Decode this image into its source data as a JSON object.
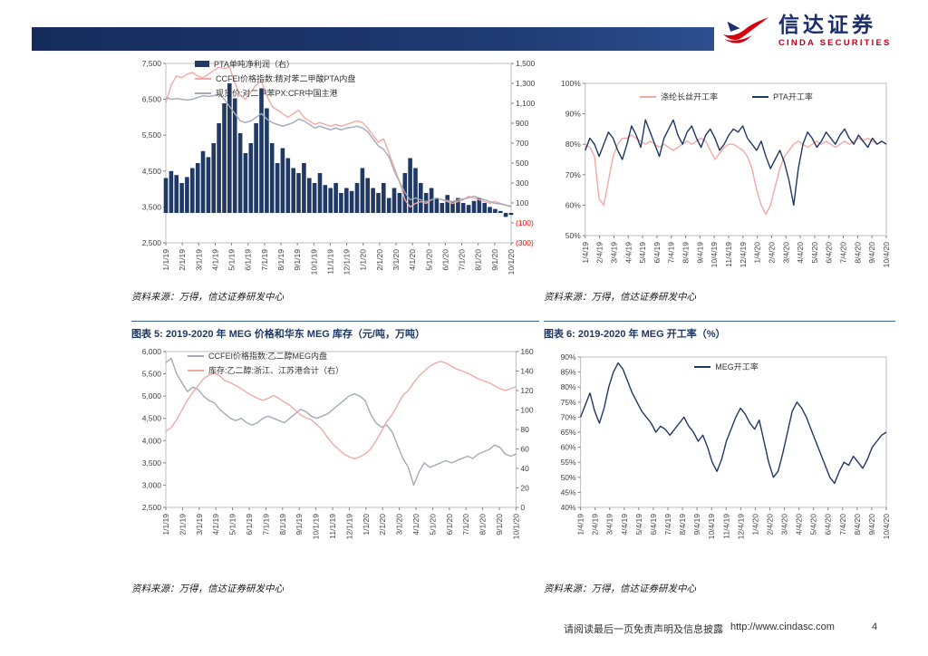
{
  "brand": {
    "name_cn": "信达证券",
    "name_en": "CINDA SECURITIES",
    "colors": {
      "navy": "#1B2F6E",
      "red": "#D7000F",
      "header_bar": "#1F3B73"
    }
  },
  "sections": {
    "source_note": "资料来源：万得，信达证券研发中心"
  },
  "page": {
    "footer_disclaimer": "请阅读最后一页免责声明及信息披露",
    "footer_url": "http://www.cindasc.com",
    "page_number": "4"
  },
  "chart_data": [
    {
      "id": "pta-profit-and-prices",
      "type": "mixed",
      "title": null,
      "x_labels": [
        "1/1/19",
        "2/1/19",
        "3/1/19",
        "4/1/19",
        "5/1/19",
        "6/1/19",
        "7/1/19",
        "8/1/19",
        "9/1/19",
        "10/1/19",
        "11/1/19",
        "12/1/19",
        "1/1/20",
        "2/1/20",
        "3/1/20",
        "4/1/20",
        "5/1/20",
        "6/1/20",
        "7/1/20",
        "8/1/20",
        "9/1/20",
        "10/1/20"
      ],
      "left_axis": {
        "min": 2500,
        "max": 7500,
        "ticks": [
          "7,500",
          "6,500",
          "5,500",
          "4,500",
          "3,500",
          "2,500"
        ]
      },
      "right_axis": {
        "min": -300,
        "max": 1500,
        "negative_red": true,
        "ticks": [
          "1,500",
          "1,300",
          "1,100",
          "900",
          "700",
          "500",
          "300",
          "100",
          "(100)",
          "(300)"
        ]
      },
      "series": [
        {
          "name": "PTA单吨净利润（右）",
          "type": "bar",
          "axis": "right",
          "color": "#1F3864",
          "values": [
            350,
            420,
            380,
            300,
            360,
            450,
            500,
            620,
            560,
            700,
            900,
            1100,
            1300,
            1150,
            800,
            600,
            700,
            900,
            1250,
            1050,
            700,
            500,
            650,
            550,
            450,
            400,
            500,
            350,
            300,
            400,
            280,
            250,
            300,
            200,
            250,
            220,
            300,
            450,
            350,
            250,
            200,
            300,
            150,
            250,
            200,
            400,
            550,
            450,
            300,
            200,
            250,
            150,
            100,
            180,
            120,
            150,
            100,
            80,
            120,
            150,
            100,
            60,
            40,
            20,
            -40,
            -20
          ]
        },
        {
          "name": "CCFEI价格指数:精对苯二甲酸PTA内盘",
          "type": "line",
          "axis": "left",
          "color": "#F2A9A4",
          "values": [
            6400,
            6900,
            7150,
            7100,
            7200,
            7250,
            7150,
            7100,
            7200,
            7300,
            7400,
            7350,
            7400,
            6950,
            6600,
            6500,
            6700,
            6900,
            7000,
            6600,
            6300,
            6200,
            6100,
            6000,
            6100,
            6200,
            6000,
            5900,
            5800,
            5850,
            5800,
            5750,
            5800,
            5750,
            5800,
            5850,
            5900,
            5850,
            5700,
            5500,
            5300,
            5400,
            5000,
            4600,
            4200,
            3700,
            3500,
            3600,
            3650,
            3600,
            3700,
            3750,
            3700,
            3650,
            3600,
            3650,
            3700,
            3800,
            3750,
            3700,
            3650,
            3600,
            3650,
            3600,
            3550,
            3500
          ]
        },
        {
          "name": "现货价:对二甲苯PX:CFR中国主港",
          "type": "line",
          "axis": "left",
          "color": "#A3AAB8",
          "values": [
            6550,
            6500,
            6520,
            6500,
            6480,
            6500,
            6550,
            6600,
            6580,
            6600,
            6650,
            6500,
            6300,
            6100,
            5900,
            5850,
            5900,
            6000,
            6100,
            5950,
            5850,
            5800,
            5750,
            5800,
            5850,
            5950,
            5900,
            5800,
            5700,
            5750,
            5700,
            5650,
            5700,
            5650,
            5700,
            5720,
            5750,
            5700,
            5600,
            5400,
            5200,
            5100,
            4900,
            4500,
            4200,
            3900,
            3700,
            3750,
            3700,
            3650,
            3700,
            3750,
            3700,
            3680,
            3650,
            3700,
            3720,
            3750,
            3800,
            3750,
            3700,
            3650,
            3600,
            3580,
            3550,
            3520
          ]
        }
      ]
    },
    {
      "id": "polyester-pta-operating-rates",
      "type": "line",
      "title": null,
      "x_labels": [
        "1/4/19",
        "2/4/19",
        "3/4/19",
        "4/4/19",
        "5/4/19",
        "6/4/19",
        "7/4/19",
        "8/4/19",
        "9/4/19",
        "10/4/19",
        "11/4/19",
        "12/4/19",
        "1/4/20",
        "2/4/20",
        "3/4/20",
        "4/4/20",
        "5/4/20",
        "6/4/20",
        "7/4/20",
        "8/4/20",
        "9/4/20",
        "10/4/20"
      ],
      "left_axis": {
        "min": 50,
        "max": 100,
        "ticks": [
          "100%",
          "90%",
          "80%",
          "70%",
          "60%",
          "50%"
        ]
      },
      "series": [
        {
          "name": "涤纶长丝开工率",
          "type": "line",
          "axis": "left",
          "color": "#F2A9A4",
          "values": [
            80,
            79,
            76,
            62,
            60,
            68,
            76,
            80,
            82,
            82,
            83,
            82,
            81,
            80,
            81,
            80,
            79,
            80,
            79,
            78,
            79,
            80,
            81,
            80,
            81,
            82,
            81,
            78,
            75,
            77,
            79,
            80,
            80,
            79,
            78,
            76,
            72,
            65,
            60,
            57,
            60,
            66,
            72,
            76,
            78,
            80,
            81,
            80,
            79,
            80,
            81,
            80,
            81,
            80,
            79,
            80,
            81,
            80,
            81,
            82,
            81,
            82,
            81,
            80,
            81,
            80
          ]
        },
        {
          "name": "PTA开工率",
          "type": "line",
          "axis": "left",
          "color": "#1F3864",
          "values": [
            78,
            82,
            80,
            76,
            80,
            84,
            82,
            78,
            75,
            80,
            86,
            83,
            79,
            88,
            84,
            80,
            76,
            82,
            85,
            88,
            83,
            80,
            84,
            86,
            82,
            79,
            83,
            85,
            82,
            78,
            80,
            83,
            85,
            84,
            86,
            82,
            80,
            78,
            81,
            76,
            72,
            75,
            78,
            74,
            68,
            60,
            72,
            80,
            84,
            82,
            79,
            81,
            84,
            82,
            80,
            83,
            85,
            82,
            80,
            83,
            81,
            79,
            82,
            80,
            81,
            80
          ]
        }
      ]
    },
    {
      "id": "meg-price-and-inventory",
      "type": "line",
      "title": "图表 5: 2019-2020 年 MEG 价格和华东 MEG 库存（元/吨，万吨）",
      "x_labels": [
        "1/1/19",
        "2/1/19",
        "3/1/19",
        "4/1/19",
        "5/1/19",
        "6/1/19",
        "7/1/19",
        "8/1/19",
        "9/1/19",
        "10/1/19",
        "11/1/19",
        "12/1/19",
        "1/1/20",
        "2/1/20",
        "3/1/20",
        "4/1/20",
        "5/1/20",
        "6/1/20",
        "7/1/20",
        "8/1/20",
        "9/1/20",
        "10/1/20"
      ],
      "left_axis": {
        "min": 2500,
        "max": 6000,
        "ticks": [
          "6,000",
          "5,500",
          "5,000",
          "4,500",
          "4,000",
          "3,500",
          "3,000",
          "2,500"
        ]
      },
      "right_axis": {
        "min": 0,
        "max": 160,
        "negative_red": false,
        "ticks": [
          "160",
          "140",
          "120",
          "100",
          "80",
          "60",
          "40",
          "20",
          "0"
        ]
      },
      "series": [
        {
          "name": "CCFEI价格指数:乙二醇MEG内盘",
          "type": "line",
          "axis": "left",
          "color": "#A3AAB8",
          "values": [
            5750,
            5850,
            5500,
            5300,
            5100,
            5200,
            5150,
            5000,
            4900,
            4850,
            4700,
            4600,
            4500,
            4450,
            4500,
            4400,
            4350,
            4400,
            4500,
            4550,
            4500,
            4450,
            4400,
            4500,
            4600,
            4700,
            4650,
            4550,
            4500,
            4550,
            4600,
            4700,
            4800,
            4900,
            5000,
            5050,
            5000,
            4900,
            4600,
            4400,
            4300,
            4350,
            4200,
            3900,
            3600,
            3400,
            3000,
            3300,
            3500,
            3400,
            3450,
            3500,
            3550,
            3500,
            3550,
            3600,
            3650,
            3600,
            3700,
            3750,
            3800,
            3900,
            3850,
            3700,
            3650,
            3700
          ]
        },
        {
          "name": "库存:乙二醇:浙江、江苏港合计（右）",
          "type": "line",
          "axis": "right",
          "color": "#F2A9A4",
          "values": [
            78,
            82,
            90,
            100,
            110,
            118,
            125,
            132,
            136,
            138,
            135,
            130,
            128,
            125,
            122,
            118,
            115,
            112,
            110,
            112,
            115,
            112,
            108,
            105,
            100,
            95,
            92,
            90,
            85,
            80,
            72,
            65,
            60,
            55,
            52,
            50,
            52,
            55,
            60,
            68,
            78,
            88,
            95,
            105,
            115,
            120,
            128,
            135,
            140,
            145,
            148,
            150,
            148,
            145,
            142,
            140,
            138,
            135,
            132,
            130,
            128,
            125,
            122,
            120,
            122,
            124
          ]
        }
      ]
    },
    {
      "id": "meg-operating-rate",
      "type": "line",
      "title": "图表 6: 2019-2020 年 MEG 开工率（%）",
      "x_labels": [
        "1/4/19",
        "2/4/19",
        "3/4/19",
        "4/4/19",
        "5/4/19",
        "6/4/19",
        "7/4/19",
        "8/4/19",
        "9/4/19",
        "10/4/19",
        "11/4/19",
        "12/4/19",
        "1/4/20",
        "2/4/20",
        "3/4/20",
        "4/4/20",
        "5/4/20",
        "6/4/20",
        "7/4/20",
        "8/4/20",
        "9/4/20",
        "10/4/20"
      ],
      "left_axis": {
        "min": 40,
        "max": 90,
        "ticks": [
          "90%",
          "85%",
          "80%",
          "75%",
          "70%",
          "65%",
          "60%",
          "55%",
          "50%",
          "45%",
          "40%"
        ]
      },
      "series": [
        {
          "name": "MEG开工率",
          "type": "line",
          "axis": "left",
          "color": "#1F3864",
          "values": [
            70,
            74,
            78,
            72,
            68,
            73,
            80,
            85,
            88,
            86,
            82,
            78,
            75,
            72,
            70,
            68,
            65,
            67,
            66,
            64,
            66,
            68,
            70,
            67,
            65,
            62,
            64,
            60,
            55,
            52,
            56,
            62,
            66,
            70,
            73,
            71,
            68,
            66,
            69,
            62,
            55,
            50,
            52,
            58,
            65,
            72,
            75,
            73,
            70,
            66,
            62,
            58,
            54,
            50,
            48,
            52,
            55,
            54,
            57,
            55,
            53,
            56,
            60,
            62,
            64,
            65
          ]
        }
      ]
    }
  ]
}
